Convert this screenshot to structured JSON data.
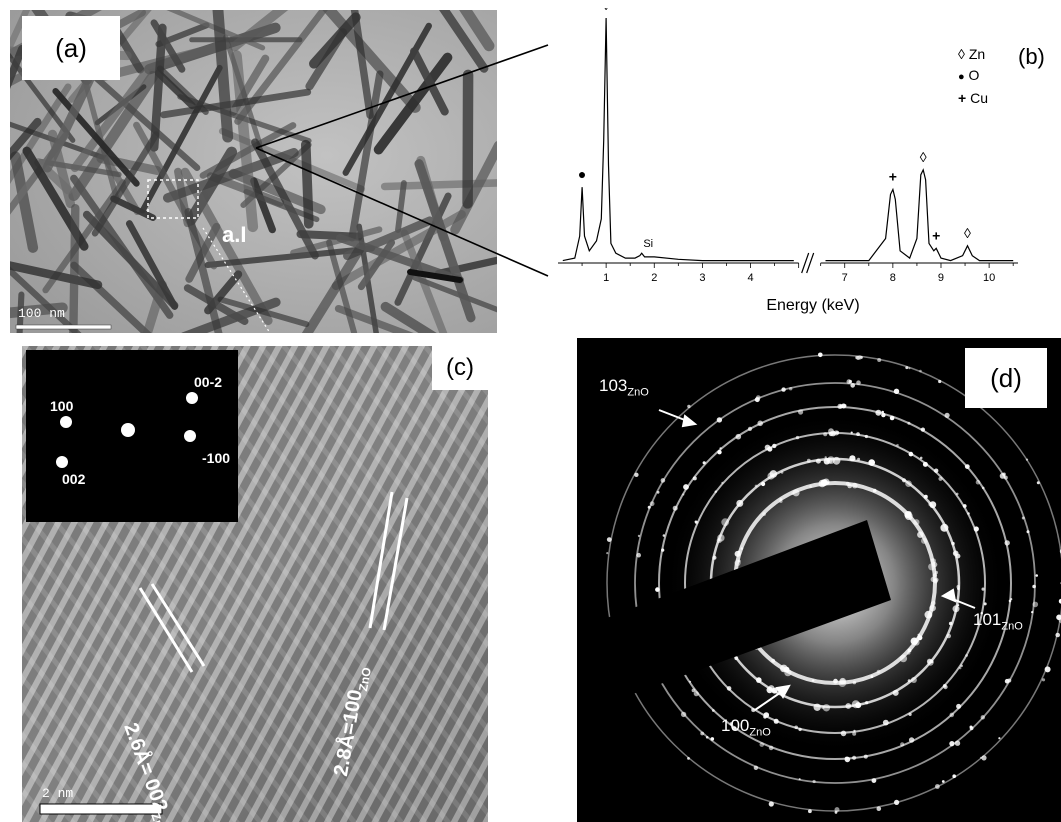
{
  "figure": {
    "panel_a": {
      "label": "(a)",
      "scale_bar": "100 nm",
      "region_label": "a.I"
    },
    "panel_b": {
      "label": "(b)",
      "legend": [
        {
          "symbol": "◊",
          "name": "Zn"
        },
        {
          "symbol": "●",
          "name": "O"
        },
        {
          "symbol": "+",
          "name": "Cu"
        }
      ],
      "si_label": "Si",
      "peak_markers": [
        "●",
        "◊",
        "+",
        "◊",
        "+",
        "◊"
      ],
      "axis_break": "//"
    },
    "panel_c": {
      "label": "(c)",
      "scale_bar": "2 nm",
      "fft_spots": [
        "100",
        "002",
        "00-2",
        "-100"
      ],
      "fringe1": {
        "text": "2.6Å= 002",
        "sub": "ZnO"
      },
      "fringe2": {
        "text": "2.8Å=100",
        "sub": "ZnO"
      }
    },
    "panel_d": {
      "label": "(d)",
      "rings": [
        {
          "text": "103",
          "sub": "ZnO"
        },
        {
          "text": "101",
          "sub": "ZnO"
        },
        {
          "text": "100",
          "sub": "ZnO"
        }
      ]
    }
  },
  "chart_data": {
    "type": "line",
    "title": "",
    "xlabel": "Energy (keV)",
    "ylabel": "",
    "xticks": [
      "1",
      "2",
      "3",
      "4",
      "7",
      "8",
      "9",
      "10"
    ],
    "xlim": [
      0,
      10.6
    ],
    "axis_break": [
      5.0,
      6.5
    ],
    "ylim": [
      0,
      100
    ],
    "series": [
      {
        "x": [
          0.1,
          0.35,
          0.45,
          0.5,
          0.55,
          0.65,
          0.8,
          0.9,
          0.95,
          1.0,
          1.05,
          1.1,
          1.2,
          1.4,
          1.6,
          1.7,
          1.74,
          1.8,
          2.0,
          2.5,
          3.0,
          4.0,
          4.9,
          6.6,
          7.5,
          7.85,
          7.95,
          8.0,
          8.05,
          8.15,
          8.35,
          8.5,
          8.58,
          8.63,
          8.68,
          8.75,
          8.85,
          8.9,
          9.0,
          9.2,
          9.45,
          9.55,
          9.65,
          9.8,
          10.2,
          10.5
        ],
        "y": [
          1,
          2,
          11,
          31,
          11,
          5,
          9,
          18,
          50,
          100,
          40,
          8,
          4,
          2,
          2,
          3,
          4,
          2.5,
          2.5,
          1.5,
          1,
          1,
          1,
          1,
          1,
          10,
          28,
          30,
          26,
          5,
          2,
          10,
          36,
          38,
          34,
          8,
          5,
          6,
          2,
          1,
          3,
          7,
          3,
          1,
          1,
          1
        ]
      }
    ],
    "annotations": [
      {
        "text": "●",
        "x": 0.5
      },
      {
        "text": "◊",
        "x": 1.0
      },
      {
        "text": "Si",
        "x": 1.75
      },
      {
        "text": "+",
        "x": 8.0
      },
      {
        "text": "◊",
        "x": 8.63
      },
      {
        "text": "+",
        "x": 8.9
      },
      {
        "text": "◊",
        "x": 9.55
      }
    ]
  }
}
